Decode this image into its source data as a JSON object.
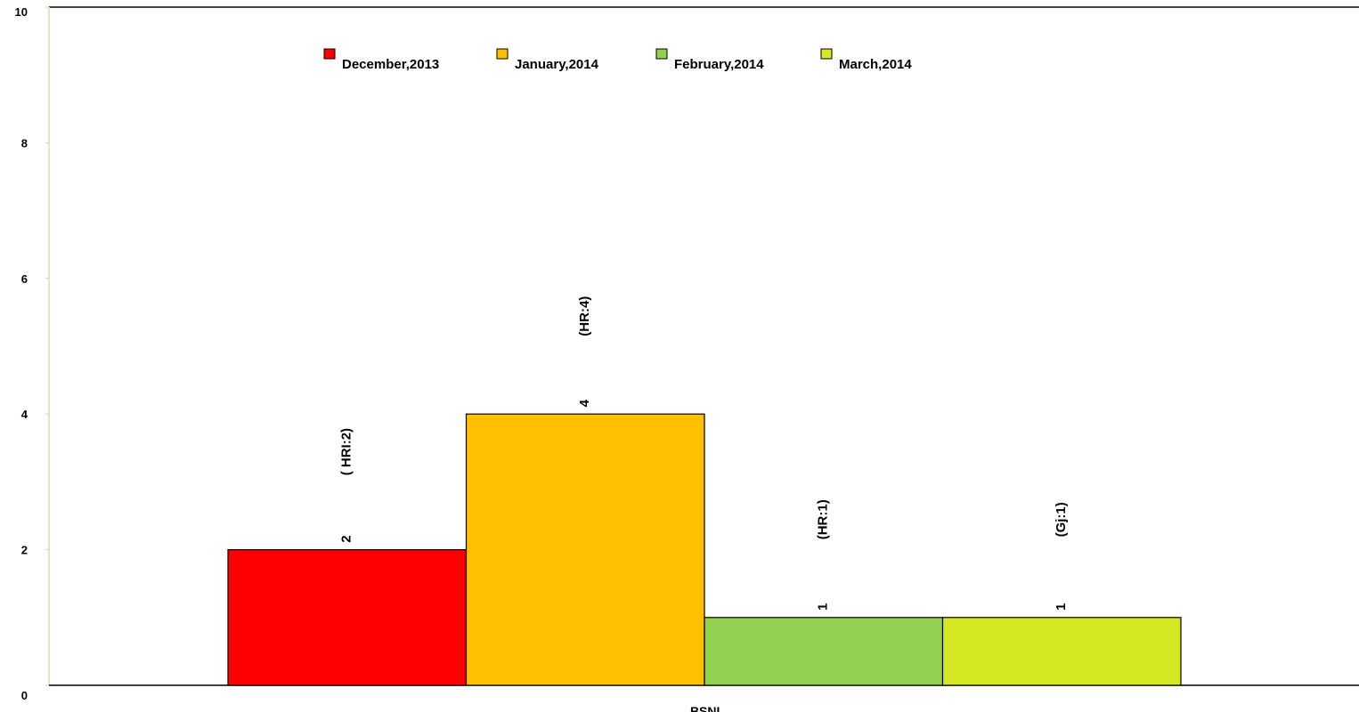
{
  "chart_data": {
    "type": "bar",
    "categories": [
      "BSNL"
    ],
    "series": [
      {
        "name": "December,2013",
        "values": [
          2
        ],
        "annotation": "( HRI:2)",
        "color": "#ff0000"
      },
      {
        "name": "January,2014",
        "values": [
          4
        ],
        "annotation": "(HR:4)",
        "color": "#ffc000"
      },
      {
        "name": "February,2014",
        "values": [
          1
        ],
        "annotation": "(HR:1)",
        "color": "#92d050"
      },
      {
        "name": "March,2014",
        "values": [
          1
        ],
        "annotation": "(Gj:1)",
        "color": "#d4e824"
      }
    ],
    "yticks": [
      0,
      2,
      4,
      6,
      8,
      10
    ],
    "ylim": [
      0,
      10
    ],
    "grid": false,
    "legend_position": "top-left",
    "colors": {
      "axis": "#000000",
      "y_axis": "#dde7c8",
      "bar_border": "#000000"
    }
  }
}
